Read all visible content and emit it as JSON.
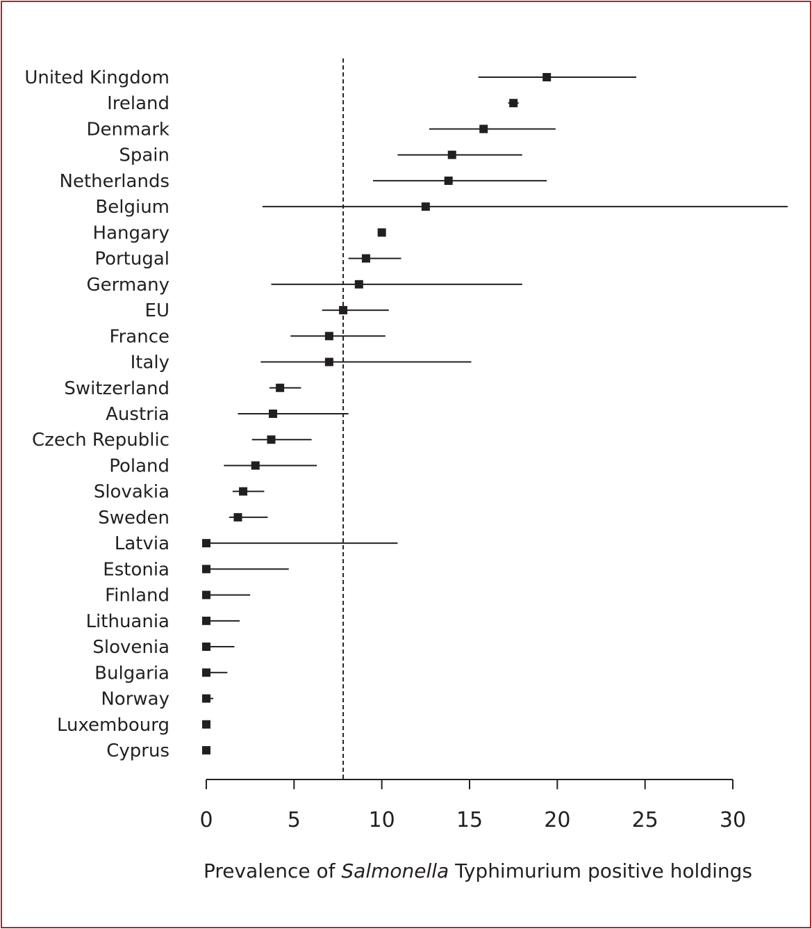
{
  "chart_data": {
    "type": "scatter",
    "subtype": "forest-plot",
    "xlabel": {
      "before": "Prevalence of ",
      "italic": "Salmonella",
      "after": " Typhimurium positive holdings"
    },
    "xlim": [
      0,
      30
    ],
    "xticks": [
      0,
      5,
      10,
      15,
      20,
      25,
      30
    ],
    "reference_line": {
      "x": 7.8,
      "style": "dashed"
    },
    "marker_color": "#231f20",
    "points": [
      {
        "label": "United Kingdom",
        "value": 19.4,
        "lower": 15.5,
        "upper": 24.5
      },
      {
        "label": "Ireland",
        "value": 17.5,
        "lower": 17.2,
        "upper": 17.8
      },
      {
        "label": "Denmark",
        "value": 15.8,
        "lower": 12.7,
        "upper": 19.9
      },
      {
        "label": "Spain",
        "value": 14.0,
        "lower": 10.9,
        "upper": 18.0
      },
      {
        "label": "Netherlands",
        "value": 13.8,
        "lower": 9.5,
        "upper": 19.4
      },
      {
        "label": "Belgium",
        "value": 12.5,
        "lower": 3.2,
        "upper": 33.3
      },
      {
        "label": "Hangary",
        "value": 10.0,
        "lower": 10.0,
        "upper": 10.0
      },
      {
        "label": "Portugal",
        "value": 9.1,
        "lower": 8.1,
        "upper": 11.1
      },
      {
        "label": "Germany",
        "value": 8.7,
        "lower": 3.7,
        "upper": 18.0
      },
      {
        "label": "EU",
        "value": 7.8,
        "lower": 6.6,
        "upper": 10.4
      },
      {
        "label": "France",
        "value": 7.0,
        "lower": 4.8,
        "upper": 10.2
      },
      {
        "label": "Italy",
        "value": 7.0,
        "lower": 3.1,
        "upper": 15.1
      },
      {
        "label": "Switzerland",
        "value": 4.2,
        "lower": 3.6,
        "upper": 5.4
      },
      {
        "label": "Austria",
        "value": 3.8,
        "lower": 1.8,
        "upper": 8.1
      },
      {
        "label": "Czech Republic",
        "value": 3.7,
        "lower": 2.6,
        "upper": 6.0
      },
      {
        "label": "Poland",
        "value": 2.8,
        "lower": 1.0,
        "upper": 6.3
      },
      {
        "label": "Slovakia",
        "value": 2.1,
        "lower": 1.5,
        "upper": 3.3
      },
      {
        "label": "Sweden",
        "value": 1.8,
        "lower": 1.3,
        "upper": 3.5
      },
      {
        "label": "Latvia",
        "value": 0.0,
        "lower": 0.0,
        "upper": 10.9
      },
      {
        "label": "Estonia",
        "value": 0.0,
        "lower": 0.0,
        "upper": 4.7
      },
      {
        "label": "Finland",
        "value": 0.0,
        "lower": 0.0,
        "upper": 2.5
      },
      {
        "label": "Lithuania",
        "value": 0.0,
        "lower": 0.0,
        "upper": 1.9
      },
      {
        "label": "Slovenia",
        "value": 0.0,
        "lower": 0.0,
        "upper": 1.6
      },
      {
        "label": "Bulgaria",
        "value": 0.0,
        "lower": 0.0,
        "upper": 1.2
      },
      {
        "label": "Norway",
        "value": 0.0,
        "lower": 0.0,
        "upper": 0.4
      },
      {
        "label": "Luxembourg",
        "value": 0.0,
        "lower": 0.0,
        "upper": 0.0
      },
      {
        "label": "Cyprus",
        "value": 0.0,
        "lower": 0.0,
        "upper": 0.0
      }
    ]
  }
}
